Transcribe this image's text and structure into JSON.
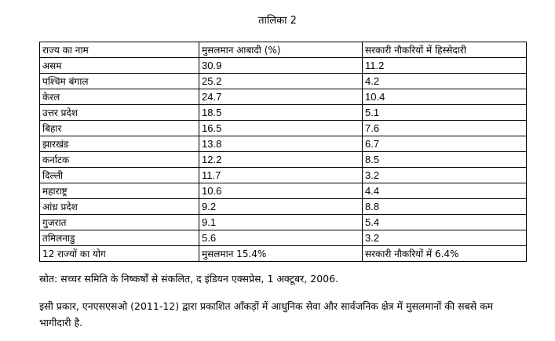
{
  "caption": "तालिका 2",
  "table": {
    "headers": [
      "राज्य का नाम",
      "मुसलमान आबादी (%)",
      "सरकारी नौकरियों में हिस्सेदारी"
    ],
    "rows": [
      [
        "असम",
        "30.9",
        "11.2"
      ],
      [
        "पश्चिम बंगाल",
        "25.2",
        "4.2"
      ],
      [
        "केरल",
        "24.7",
        "10.4"
      ],
      [
        "उत्तर प्रदेश",
        "18.5",
        "5.1"
      ],
      [
        "बिहार",
        "16.5",
        "7.6"
      ],
      [
        "झारखंड",
        "13.8",
        "6.7"
      ],
      [
        "कर्नाटक",
        "12.2",
        "8.5"
      ],
      [
        "दिल्ली",
        "11.7",
        "3.2"
      ],
      [
        "महाराष्ट्र",
        "10.6",
        "4.4"
      ],
      [
        "आंध्र प्रदेश",
        "9.2",
        "8.8"
      ],
      [
        "गुजरात",
        "9.1",
        "5.4"
      ],
      [
        "तमिलनाडु",
        "5.6",
        "3.2"
      ]
    ],
    "footer": [
      "12 राज्यों का योग",
      "मुसलमान 15.4%",
      "सरकारी नौकरियों में 6.4%"
    ]
  },
  "source": "स्रोत: सच्चर समिति के निष्कर्षों से संकलित, द इंडियन एक्सप्रेस, 1 अक्टूबर, 2006.",
  "paragraph": "इसी प्रकार, एनएसएसओ (2011-12) द्वारा प्रकाशित आँकड़ों में आधुनिक सेवा और सार्वजनिक क्षेत्र में मुसलमानों की सबसे कम भागीदारी है."
}
